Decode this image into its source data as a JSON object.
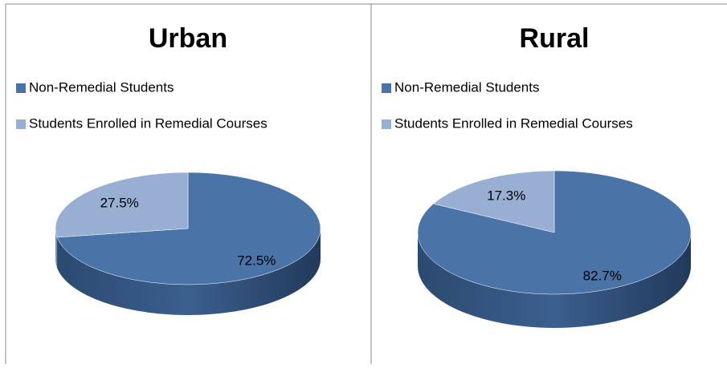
{
  "chart_data": [
    {
      "type": "pie3d",
      "title": "Urban",
      "categories": [
        "Non-Remedial Students",
        "Students Enrolled in Remedial Courses"
      ],
      "values": [
        72.5,
        27.5
      ],
      "value_labels": [
        "72.5%",
        "27.5%"
      ],
      "colors": [
        "#4a73a8",
        "#99aed3"
      ]
    },
    {
      "type": "pie3d",
      "title": "Rural",
      "categories": [
        "Non-Remedial Students",
        "Students Enrolled in Remedial Courses"
      ],
      "values": [
        82.7,
        17.3
      ],
      "value_labels": [
        "82.7%",
        "17.3%"
      ],
      "colors": [
        "#4a73a8",
        "#99aed3"
      ]
    }
  ]
}
